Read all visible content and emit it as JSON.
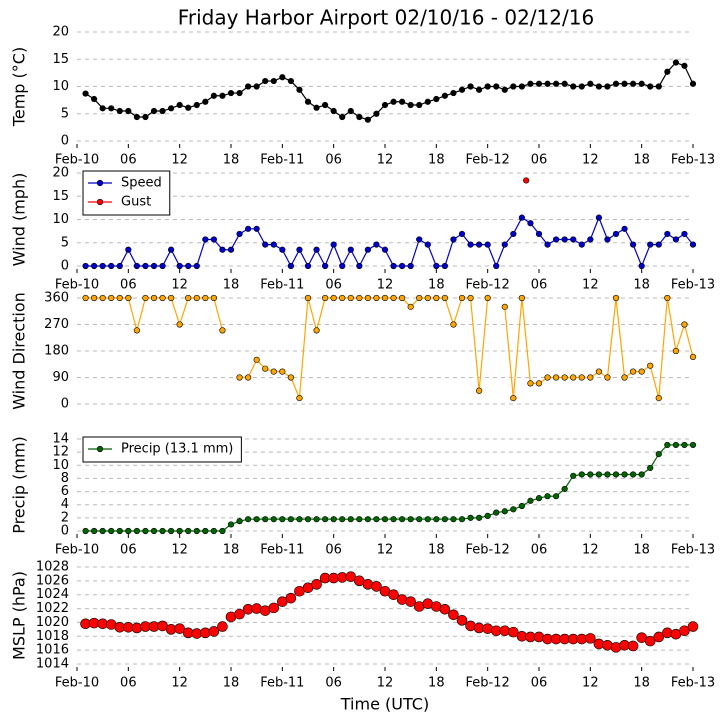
{
  "title": "Friday Harbor Airport 02/10/16 - 02/12/16",
  "chart_data": [
    {
      "type": "line",
      "ylabel": "Temp (°C)",
      "ylim": [
        0,
        20
      ],
      "yticks": [
        0,
        5,
        10,
        15,
        20
      ],
      "xlim": [
        0,
        72
      ],
      "grid": true,
      "xticks": [
        {
          "value": 0,
          "label": "Feb-10"
        },
        {
          "value": 6,
          "label": "06"
        },
        {
          "value": 12,
          "label": "12"
        },
        {
          "value": 18,
          "label": "18"
        },
        {
          "value": 24,
          "label": "Feb-11"
        },
        {
          "value": 30,
          "label": "06"
        },
        {
          "value": 36,
          "label": "12"
        },
        {
          "value": 42,
          "label": "18"
        },
        {
          "value": 48,
          "label": "Feb-12"
        },
        {
          "value": 54,
          "label": "06"
        },
        {
          "value": 60,
          "label": "12"
        },
        {
          "value": 66,
          "label": "18"
        },
        {
          "value": 72,
          "label": "Feb-13"
        }
      ],
      "series": [
        {
          "color": "#000000",
          "x": [
            1,
            2,
            3,
            4,
            5,
            6,
            7,
            8,
            9,
            10,
            11,
            12,
            13,
            14,
            15,
            16,
            17,
            18,
            19,
            20,
            21,
            22,
            23,
            24,
            25,
            26,
            27,
            28,
            29,
            30,
            31,
            32,
            33,
            34,
            35,
            36,
            37,
            38,
            39,
            40,
            41,
            42,
            43,
            44,
            45,
            46,
            47,
            48,
            49,
            50,
            51,
            52,
            53,
            54,
            55,
            56,
            57,
            58,
            59,
            60,
            61,
            62,
            63,
            64,
            65,
            66,
            67,
            68,
            69,
            70,
            71,
            72
          ],
          "values": [
            8.7,
            7.7,
            6,
            6,
            5.5,
            5.5,
            4.4,
            4.4,
            5.5,
            5.5,
            6,
            6.6,
            6.1,
            6.6,
            7.2,
            8.3,
            8.3,
            8.8,
            8.8,
            10,
            10,
            11,
            11,
            11.7,
            11,
            9.4,
            7.2,
            6.1,
            6.6,
            5.5,
            4.4,
            5.5,
            4.4,
            3.9,
            5,
            6.6,
            7.2,
            7.2,
            6.6,
            6.6,
            7.2,
            7.7,
            8.3,
            8.8,
            9.4,
            10,
            9.4,
            10,
            10,
            9.4,
            10,
            10,
            10.5,
            10.5,
            10.5,
            10.5,
            10.5,
            10,
            10,
            10.5,
            10,
            10,
            10.5,
            10.5,
            10.5,
            10.5,
            10,
            10,
            12.7,
            14.4,
            13.8,
            10.5
          ]
        }
      ]
    },
    {
      "type": "line",
      "ylabel": "Wind (mph)",
      "ylim": [
        0,
        20
      ],
      "yticks": [
        0,
        5,
        10,
        15,
        20
      ],
      "xlim": [
        0,
        72
      ],
      "grid": true,
      "legend": "upper left",
      "xticks": [
        {
          "value": 0,
          "label": "Feb-10"
        },
        {
          "value": 6,
          "label": "06"
        },
        {
          "value": 12,
          "label": "12"
        },
        {
          "value": 18,
          "label": "18"
        },
        {
          "value": 24,
          "label": "Feb-11"
        },
        {
          "value": 30,
          "label": "06"
        },
        {
          "value": 36,
          "label": "12"
        },
        {
          "value": 42,
          "label": "18"
        },
        {
          "value": 48,
          "label": "Feb-12"
        },
        {
          "value": 54,
          "label": "06"
        },
        {
          "value": 60,
          "label": "12"
        },
        {
          "value": 66,
          "label": "18"
        },
        {
          "value": 72,
          "label": "Feb-13"
        }
      ],
      "series": [
        {
          "name": "Speed",
          "color": "#0000cc",
          "x": [
            1,
            2,
            3,
            4,
            5,
            6,
            7,
            8,
            9,
            10,
            11,
            12,
            13,
            14,
            15,
            16,
            17,
            18,
            19,
            20,
            21,
            22,
            23,
            24,
            25,
            26,
            27,
            28,
            29,
            30,
            31,
            32,
            33,
            34,
            35,
            36,
            37,
            38,
            39,
            40,
            41,
            42,
            43,
            44,
            45,
            46,
            47,
            48,
            49,
            50,
            51,
            52,
            53,
            54,
            55,
            56,
            57,
            58,
            59,
            60,
            61,
            62,
            63,
            64,
            65,
            66,
            67,
            68,
            69,
            70,
            71,
            72
          ],
          "values": [
            0,
            0,
            0,
            0,
            0,
            3.5,
            0,
            0,
            0,
            0,
            3.5,
            0,
            0,
            0,
            5.7,
            5.7,
            3.5,
            3.5,
            6.9,
            8,
            8,
            4.6,
            4.6,
            3.5,
            0,
            3.5,
            0,
            3.5,
            0,
            4.6,
            0,
            3.5,
            0,
            3.5,
            4.6,
            3.5,
            0,
            0,
            0,
            5.7,
            4.6,
            0,
            0,
            5.7,
            6.9,
            4.6,
            4.6,
            4.6,
            0,
            4.6,
            6.9,
            10.4,
            9.2,
            6.9,
            4.6,
            5.7,
            5.7,
            5.7,
            4.6,
            5.7,
            10.4,
            5.7,
            6.9,
            8,
            4.6,
            0,
            4.6,
            4.6,
            6.9,
            5.7,
            6.9,
            4.6
          ]
        },
        {
          "name": "Gust",
          "color": "#ff0000",
          "x": [
            52.5
          ],
          "values": [
            18.4
          ]
        }
      ]
    },
    {
      "type": "line",
      "ylabel": "Wind Direction",
      "ylim": [
        0,
        360
      ],
      "yticks": [
        0,
        90,
        180,
        270,
        360
      ],
      "xlim": [
        0,
        72
      ],
      "grid": true,
      "series": [
        {
          "color": "#ffa500",
          "x": [
            1,
            2,
            3,
            4,
            5,
            6,
            7,
            8,
            9,
            10,
            11,
            12,
            13,
            14,
            15,
            16,
            17,
            18,
            19,
            20,
            21,
            22,
            23,
            24,
            25,
            26,
            27,
            28,
            29,
            30,
            31,
            32,
            33,
            34,
            35,
            36,
            37,
            38,
            39,
            40,
            41,
            42,
            43,
            44,
            45,
            46,
            47,
            48,
            49,
            50,
            51,
            52,
            53,
            54,
            55,
            56,
            57,
            58,
            59,
            60,
            61,
            62,
            63,
            64,
            65,
            66,
            67,
            68,
            69,
            70,
            71,
            72
          ],
          "values": [
            360,
            360,
            360,
            360,
            360,
            360,
            250,
            360,
            360,
            360,
            360,
            270,
            360,
            360,
            360,
            360,
            250,
            null,
            90,
            90,
            150,
            120,
            110,
            110,
            90,
            20,
            360,
            250,
            360,
            360,
            360,
            360,
            360,
            360,
            360,
            360,
            360,
            360,
            330,
            360,
            360,
            360,
            360,
            270,
            360,
            360,
            45,
            360,
            null,
            330,
            20,
            360,
            70,
            70,
            90,
            90,
            90,
            90,
            90,
            90,
            110,
            90,
            360,
            90,
            110,
            110,
            130,
            20,
            360,
            180,
            270,
            160
          ]
        }
      ]
    },
    {
      "type": "line",
      "ylabel": "Precip (mm)",
      "ylim": [
        0,
        14
      ],
      "yticks": [
        0,
        2,
        4,
        6,
        8,
        10,
        12,
        14
      ],
      "xlim": [
        0,
        72
      ],
      "grid": true,
      "legend": "upper left",
      "xticks": [
        {
          "value": 0,
          "label": "Feb-10"
        },
        {
          "value": 6,
          "label": "06"
        },
        {
          "value": 12,
          "label": "12"
        },
        {
          "value": 18,
          "label": "18"
        },
        {
          "value": 24,
          "label": "Feb-11"
        },
        {
          "value": 30,
          "label": "06"
        },
        {
          "value": 36,
          "label": "12"
        },
        {
          "value": 42,
          "label": "18"
        },
        {
          "value": 48,
          "label": "Feb-12"
        },
        {
          "value": 54,
          "label": "06"
        },
        {
          "value": 60,
          "label": "12"
        },
        {
          "value": 66,
          "label": "18"
        },
        {
          "value": 72,
          "label": "Feb-13"
        }
      ],
      "series": [
        {
          "name": "Precip (13.1 mm)",
          "color": "#006400",
          "x": [
            1,
            2,
            3,
            4,
            5,
            6,
            7,
            8,
            9,
            10,
            11,
            12,
            13,
            14,
            15,
            16,
            17,
            18,
            19,
            20,
            21,
            22,
            23,
            24,
            25,
            26,
            27,
            28,
            29,
            30,
            31,
            32,
            33,
            34,
            35,
            36,
            37,
            38,
            39,
            40,
            41,
            42,
            43,
            44,
            45,
            46,
            47,
            48,
            49,
            50,
            51,
            52,
            53,
            54,
            55,
            56,
            57,
            58,
            59,
            60,
            61,
            62,
            63,
            64,
            65,
            66,
            67,
            68,
            69,
            70,
            71,
            72
          ],
          "values": [
            0,
            0,
            0,
            0,
            0,
            0,
            0,
            0,
            0,
            0,
            0,
            0,
            0,
            0,
            0,
            0,
            0,
            1,
            1.5,
            1.8,
            1.8,
            1.8,
            1.8,
            1.8,
            1.8,
            1.8,
            1.8,
            1.8,
            1.8,
            1.8,
            1.8,
            1.8,
            1.8,
            1.8,
            1.8,
            1.8,
            1.8,
            1.8,
            1.8,
            1.8,
            1.8,
            1.8,
            1.8,
            1.8,
            1.8,
            2,
            2,
            2.3,
            2.8,
            3,
            3.3,
            3.8,
            4.6,
            5,
            5.3,
            5.3,
            6.4,
            8.4,
            8.6,
            8.6,
            8.6,
            8.6,
            8.6,
            8.6,
            8.6,
            8.6,
            9.6,
            11.7,
            13.1,
            13.1,
            13.1,
            13.1
          ]
        }
      ]
    },
    {
      "type": "scatter",
      "ylabel": "MSLP (hPa)",
      "xlabel": "Time (UTC)",
      "ylim": [
        1014,
        1028
      ],
      "yticks": [
        1014,
        1016,
        1018,
        1020,
        1022,
        1024,
        1026,
        1028
      ],
      "xlim": [
        0,
        72
      ],
      "grid": true,
      "xticks": [
        {
          "value": 0,
          "label": "Feb-10"
        },
        {
          "value": 6,
          "label": "06"
        },
        {
          "value": 12,
          "label": "12"
        },
        {
          "value": 18,
          "label": "18"
        },
        {
          "value": 24,
          "label": "Feb-11"
        },
        {
          "value": 30,
          "label": "06"
        },
        {
          "value": 36,
          "label": "12"
        },
        {
          "value": 42,
          "label": "18"
        },
        {
          "value": 48,
          "label": "Feb-12"
        },
        {
          "value": 54,
          "label": "06"
        },
        {
          "value": 60,
          "label": "12"
        },
        {
          "value": 66,
          "label": "18"
        },
        {
          "value": 72,
          "label": "Feb-13"
        }
      ],
      "series": [
        {
          "color": "#ff0000",
          "x": [
            1,
            2,
            3,
            4,
            5,
            6,
            7,
            8,
            9,
            10,
            11,
            12,
            13,
            14,
            15,
            16,
            17,
            18,
            19,
            20,
            21,
            22,
            23,
            24,
            25,
            26,
            27,
            28,
            29,
            30,
            31,
            32,
            33,
            34,
            35,
            36,
            37,
            38,
            39,
            40,
            41,
            42,
            43,
            44,
            45,
            46,
            47,
            48,
            49,
            50,
            51,
            52,
            53,
            54,
            55,
            56,
            57,
            58,
            59,
            60,
            61,
            62,
            63,
            64,
            65,
            66,
            67,
            68,
            69,
            70,
            71,
            72
          ],
          "values": [
            1019.8,
            1019.9,
            1019.8,
            1019.7,
            1019.3,
            1019.3,
            1019.2,
            1019.4,
            1019.4,
            1019.5,
            1019,
            1019.1,
            1018.5,
            1018.4,
            1018.5,
            1018.7,
            1019.4,
            1020.8,
            1021.2,
            1021.9,
            1022,
            1021.7,
            1022.1,
            1023,
            1023.5,
            1024.5,
            1025,
            1025.5,
            1026.4,
            1026.4,
            1026.5,
            1026.6,
            1026,
            1025.5,
            1025.2,
            1024.5,
            1024,
            1023.3,
            1023,
            1022.3,
            1022.7,
            1022.3,
            1021.9,
            1021.1,
            1020.3,
            1019.5,
            1019.2,
            1019.1,
            1018.8,
            1018.8,
            1018.6,
            1018,
            1017.9,
            1017.9,
            1017.6,
            1017.6,
            1017.6,
            1017.6,
            1017.6,
            1017.7,
            1016.9,
            1016.7,
            1016.4,
            1016.7,
            1016.6,
            1017.8,
            1017.3,
            1017.9,
            1018.5,
            1018.3,
            1018.8,
            1019.4
          ]
        }
      ]
    }
  ]
}
